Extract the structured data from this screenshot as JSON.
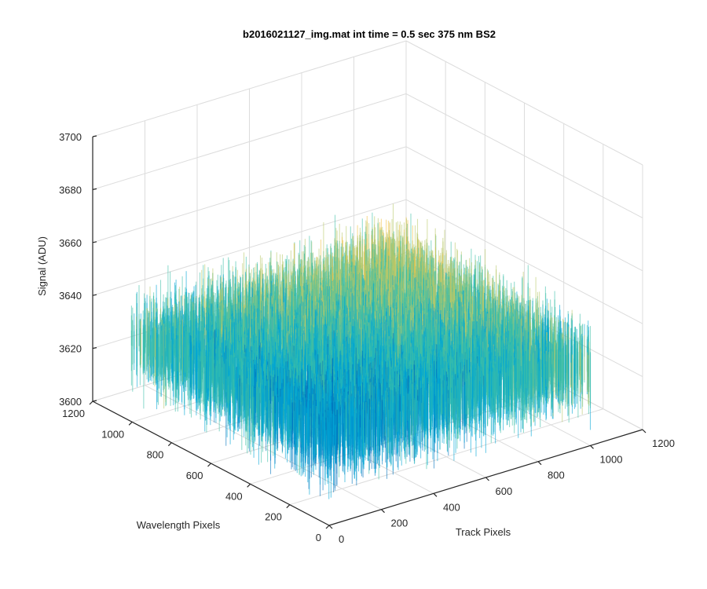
{
  "chart_data": {
    "type": "surface",
    "title": "b2016021127_img.mat int time = 0.5 sec  375 nm BS2",
    "xlabel": "Track Pixels",
    "ylabel": "Wavelength Pixels",
    "zlabel": "Signal (ADU)",
    "xlim": [
      0,
      1200
    ],
    "ylim": [
      0,
      1200
    ],
    "zlim": [
      3600,
      3700
    ],
    "x_ticks": [
      0,
      200,
      400,
      600,
      800,
      1000,
      1200
    ],
    "y_ticks": [
      0,
      200,
      400,
      600,
      800,
      1000,
      1200
    ],
    "z_ticks": [
      3600,
      3620,
      3640,
      3660,
      3680,
      3700
    ],
    "x_tick_labels": [
      "0",
      "200",
      "400",
      "600",
      "800",
      "1000",
      "1200"
    ],
    "y_tick_labels": [
      "0",
      "200",
      "400",
      "600",
      "800",
      "1000",
      "1200"
    ],
    "z_tick_labels": [
      "3600",
      "3620",
      "3640",
      "3660",
      "3680",
      "3700"
    ],
    "data_extent": {
      "x": [
        1,
        1024
      ],
      "y": [
        1,
        1024
      ]
    },
    "signal_mean": 3630,
    "signal_noise_range": [
      3605,
      3690
    ],
    "grid": true,
    "colormap": [
      "#0072bd",
      "#00a6d6",
      "#3cc0a8",
      "#b8c86a",
      "#f0c040"
    ]
  }
}
